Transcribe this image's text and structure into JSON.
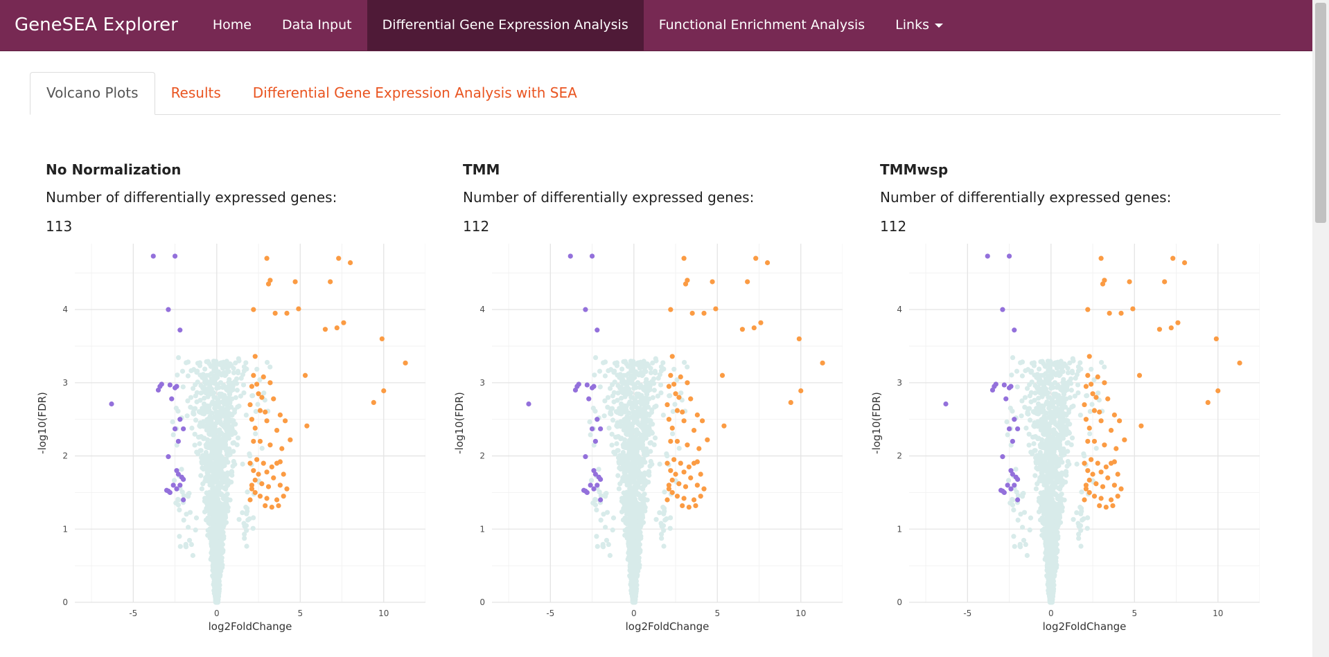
{
  "navbar": {
    "brand": "GeneSEA Explorer",
    "items": [
      "Home",
      "Data Input",
      "Differential Gene Expression Analysis",
      "Functional Enrichment Analysis",
      "Links"
    ],
    "active_index": 2
  },
  "tabs": {
    "items": [
      "Volcano Plots",
      "Results",
      "Differential Gene Expression Analysis with SEA"
    ],
    "active_index": 0
  },
  "panels": [
    {
      "title": "No Normalization",
      "label": "Number of differentially expressed genes:",
      "count": "113"
    },
    {
      "title": "TMM",
      "label": "Number of differentially expressed genes:",
      "count": "112"
    },
    {
      "title": "TMMwsp",
      "label": "Number of differentially expressed genes:",
      "count": "112"
    }
  ],
  "colors": {
    "navbar": "#772953",
    "nav_active": "#4f1a37",
    "tab_link": "#e95420",
    "up": "#fb9b43",
    "down": "#9370db",
    "ns": "#d8ebea"
  },
  "chart_data": {
    "type": "scatter",
    "xlabel": "log2FoldChange",
    "ylabel": "-log10(FDR)",
    "xlim": [
      -8.5,
      12.5
    ],
    "ylim": [
      0,
      4.9
    ],
    "x_ticks": [
      -5,
      0,
      5,
      10
    ],
    "y_ticks": [
      0,
      1,
      2,
      3,
      4
    ],
    "grid": true,
    "series": [
      {
        "values": [
          [
            2.2,
            4.0
          ],
          [
            3.0,
            4.7
          ],
          [
            3.1,
            4.35
          ],
          [
            3.2,
            4.4
          ],
          [
            3.5,
            3.95
          ],
          [
            4.2,
            3.95
          ],
          [
            4.7,
            4.38
          ],
          [
            4.9,
            4.01
          ],
          [
            6.5,
            3.73
          ],
          [
            6.8,
            4.38
          ],
          [
            7.2,
            3.75
          ],
          [
            7.3,
            4.7
          ],
          [
            7.6,
            3.82
          ],
          [
            8.0,
            4.64
          ],
          [
            9.9,
            3.6
          ],
          [
            11.3,
            3.27
          ],
          [
            10.0,
            2.89
          ],
          [
            9.4,
            2.73
          ],
          [
            5.3,
            3.1
          ],
          [
            5.4,
            2.41
          ],
          [
            2.3,
            3.36
          ],
          [
            2.2,
            3.1
          ],
          [
            2.4,
            2.98
          ],
          [
            2.8,
            3.08
          ],
          [
            3.2,
            3.0
          ],
          [
            3.4,
            2.78
          ],
          [
            2.1,
            2.95
          ],
          [
            2.5,
            2.85
          ],
          [
            2.0,
            2.7
          ],
          [
            2.7,
            2.8
          ],
          [
            2.1,
            2.5
          ],
          [
            2.9,
            2.6
          ],
          [
            3.0,
            2.48
          ],
          [
            2.3,
            2.38
          ],
          [
            3.8,
            2.56
          ],
          [
            4.1,
            2.48
          ],
          [
            3.6,
            2.35
          ],
          [
            2.2,
            2.2
          ],
          [
            2.6,
            2.2
          ],
          [
            3.2,
            2.15
          ],
          [
            3.9,
            2.1
          ],
          [
            2.4,
            1.95
          ],
          [
            2.0,
            1.9
          ],
          [
            2.8,
            1.9
          ],
          [
            3.3,
            1.85
          ],
          [
            3.6,
            1.9
          ],
          [
            3.8,
            1.92
          ],
          [
            2.2,
            1.8
          ],
          [
            2.5,
            1.75
          ],
          [
            3.0,
            1.78
          ],
          [
            3.4,
            1.7
          ],
          [
            2.1,
            1.6
          ],
          [
            2.7,
            1.62
          ],
          [
            3.1,
            1.58
          ],
          [
            3.8,
            1.6
          ],
          [
            4.2,
            1.55
          ],
          [
            2.3,
            1.5
          ],
          [
            2.6,
            1.45
          ],
          [
            3.0,
            1.42
          ],
          [
            2.0,
            1.4
          ],
          [
            4.0,
            1.45
          ],
          [
            3.6,
            1.4
          ],
          [
            2.9,
            1.32
          ],
          [
            3.3,
            1.3
          ],
          [
            3.7,
            1.32
          ],
          [
            4.4,
            2.22
          ],
          [
            2.1,
            1.55
          ],
          [
            2.3,
            1.67
          ],
          [
            4.0,
            1.75
          ],
          [
            2.6,
            2.62
          ]
        ]
      },
      {
        "values": [
          [
            -3.8,
            4.73
          ],
          [
            -2.5,
            4.73
          ],
          [
            -2.9,
            4.0
          ],
          [
            -2.2,
            3.72
          ],
          [
            -6.3,
            2.71
          ],
          [
            -3.5,
            2.9
          ],
          [
            -3.3,
            2.98
          ],
          [
            -3.4,
            2.95
          ],
          [
            -2.8,
            2.97
          ],
          [
            -2.5,
            2.93
          ],
          [
            -2.4,
            2.95
          ],
          [
            -2.7,
            2.78
          ],
          [
            -2.2,
            2.5
          ],
          [
            -2.5,
            2.37
          ],
          [
            -2.0,
            2.37
          ],
          [
            -2.3,
            2.2
          ],
          [
            -2.9,
            1.99
          ],
          [
            -2.4,
            1.8
          ],
          [
            -2.3,
            1.75
          ],
          [
            -2.1,
            1.71
          ],
          [
            -2.0,
            1.68
          ],
          [
            -2.2,
            1.6
          ],
          [
            -2.6,
            1.6
          ],
          [
            -2.9,
            1.52
          ],
          [
            -2.8,
            1.5
          ],
          [
            -2.4,
            1.55
          ],
          [
            -2.0,
            1.4
          ],
          [
            -3.0,
            1.53
          ]
        ]
      }
    ]
  }
}
